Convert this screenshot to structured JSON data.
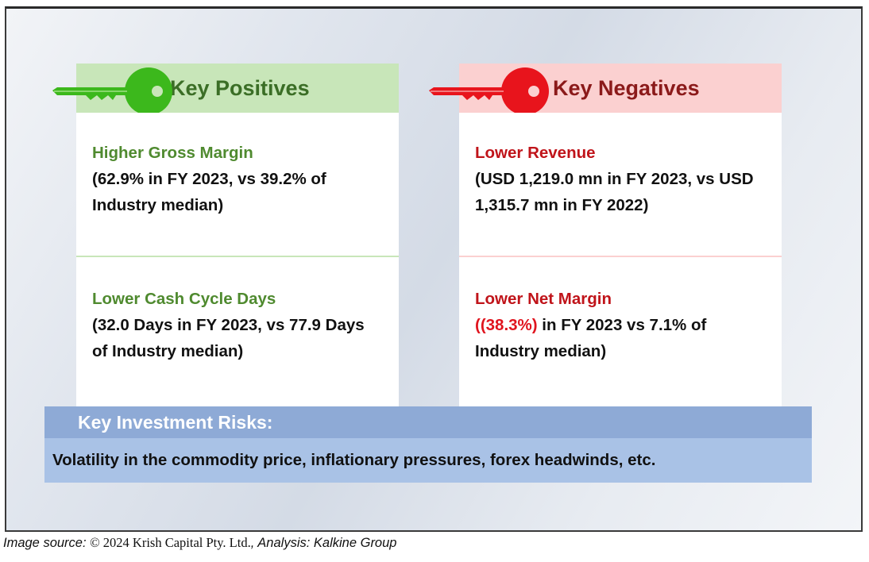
{
  "positives": {
    "header": "Key Positives",
    "items": [
      {
        "title": "Higher Gross Margin",
        "body": "(62.9% in FY 2023, vs 39.2% of Industry median)"
      },
      {
        "title": "Lower Cash Cycle Days",
        "body": "(32.0 Days in FY 2023, vs 77.9 Days of Industry median)"
      }
    ]
  },
  "negatives": {
    "header": "Key Negatives",
    "items": [
      {
        "title": "Lower Revenue",
        "body": "(USD 1,219.0 mn in FY 2023, vs USD 1,315.7 mn in FY 2022)"
      },
      {
        "title": "Lower Net Margin",
        "body_prefix": "(",
        "body_highlight": "(38.3%)",
        "body_suffix": " in FY 2023 vs 7.1% of Industry median)"
      }
    ]
  },
  "risks": {
    "header": "Key Investment Risks:",
    "body": "Volatility in the commodity price, inflationary pressures, forex headwinds, etc."
  },
  "caption": {
    "prefix": "Image source: ",
    "source": "© 2024 Krish Capital Pty. Ltd.",
    "separator": ", ",
    "analysis": "Analysis: Kalkine Group"
  },
  "colors": {
    "positive_accent": "#4f8a2f",
    "positive_header_bg": "#c8e6b9",
    "negative_accent": "#c0141a",
    "negative_header_bg": "#fbd0d0",
    "highlight_red": "#e0141e",
    "risk_header_bg": "#8eaad6",
    "risk_body_bg": "#a9c2e6"
  },
  "icons": {
    "positive_key": "green-key-icon",
    "negative_key": "red-key-icon"
  }
}
